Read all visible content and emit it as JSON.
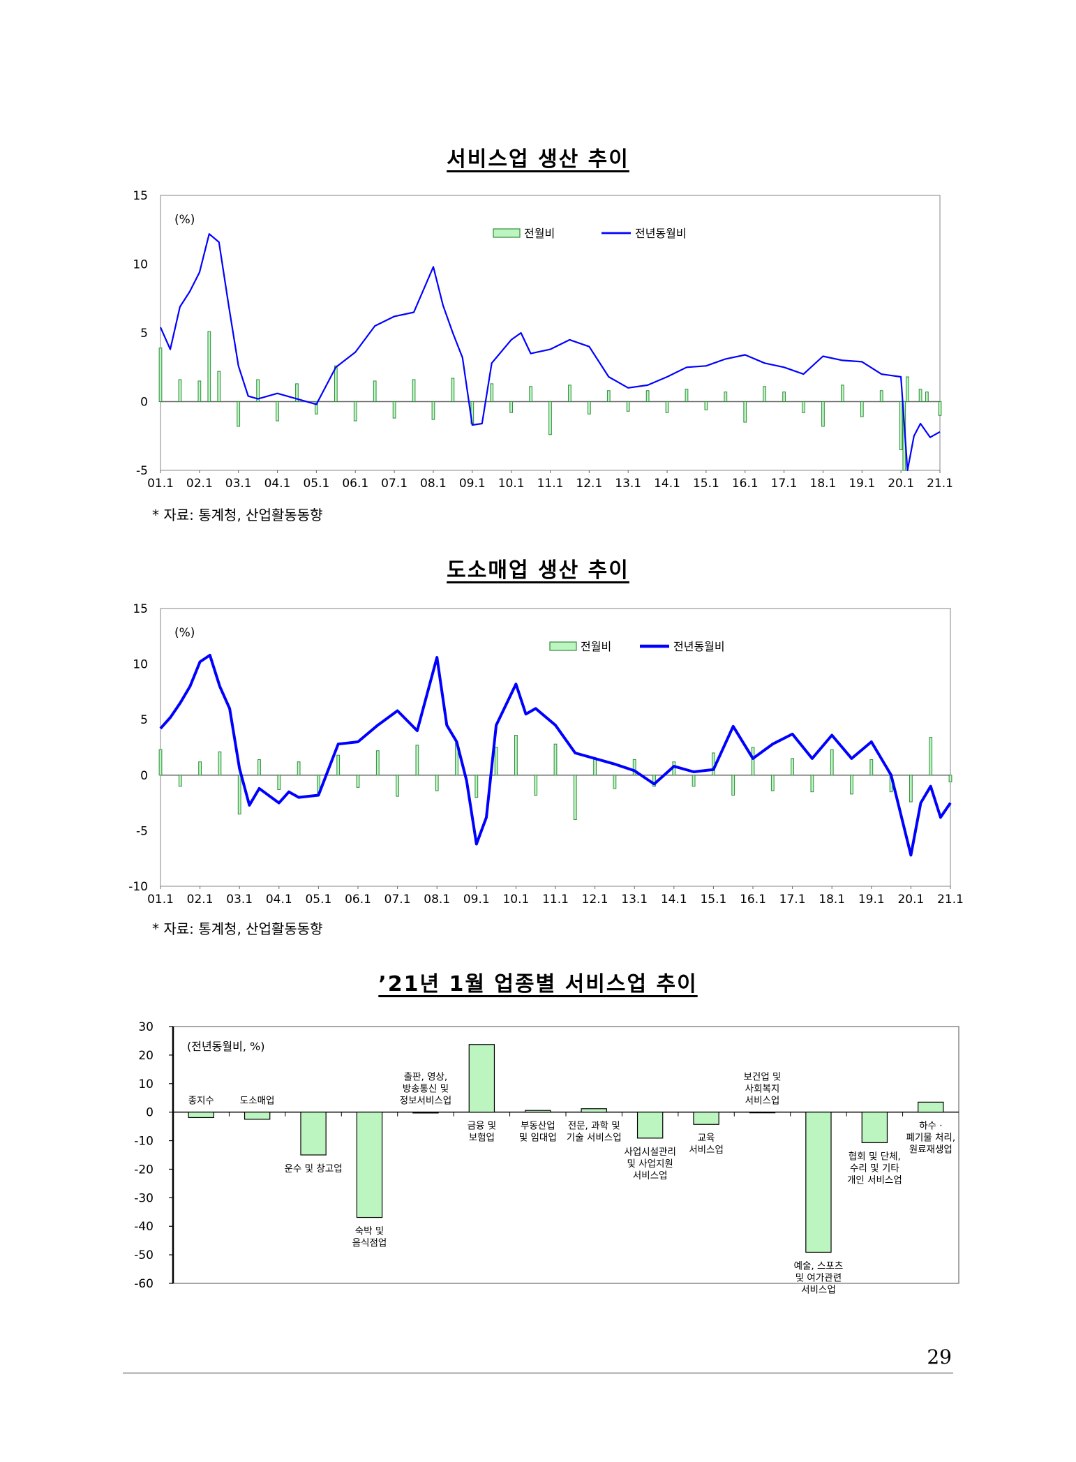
{
  "page": {
    "number": "29",
    "source_note_1": "* 자료: 통계청, 산업활동동향",
    "source_note_2": "* 자료: 통계청, 산업활동동향"
  },
  "colors": {
    "bar_fill": "#bdf5c0",
    "bar_stroke": "#2e8b3d",
    "line": "#0000ff",
    "axis": "#333333"
  },
  "chart_data": [
    {
      "type": "bar+line",
      "title": "서비스업 생산 추이",
      "unit_label": "(%)",
      "ylim": [
        -5,
        15
      ],
      "yticks": [
        -5,
        0,
        5,
        10,
        15
      ],
      "xticks": [
        "01.1",
        "02.1",
        "03.1",
        "04.1",
        "05.1",
        "06.1",
        "07.1",
        "08.1",
        "09.1",
        "10.1",
        "11.1",
        "12.1",
        "13.1",
        "14.1",
        "15.1",
        "16.1",
        "17.1",
        "18.1",
        "19.1",
        "20.1",
        "21.1"
      ],
      "legend_position": "top",
      "series": [
        {
          "name": "전월비",
          "kind": "bar",
          "x": [
            "01.1",
            "01.7",
            "02.1",
            "02.4",
            "02.7",
            "03.1",
            "03.7",
            "04.1",
            "04.7",
            "05.1",
            "05.7",
            "06.1",
            "06.7",
            "07.1",
            "07.7",
            "08.1",
            "08.7",
            "09.1",
            "09.7",
            "10.1",
            "10.7",
            "11.1",
            "11.7",
            "12.1",
            "12.7",
            "13.1",
            "13.7",
            "14.1",
            "14.7",
            "15.1",
            "15.7",
            "16.1",
            "16.7",
            "17.1",
            "17.7",
            "18.1",
            "18.7",
            "19.1",
            "19.7",
            "20.1",
            "20.2",
            "20.3",
            "20.7",
            "20.9",
            "21.1"
          ],
          "values": [
            3.9,
            1.6,
            1.5,
            5.1,
            2.2,
            -1.8,
            1.6,
            -1.4,
            1.3,
            -0.9,
            2.6,
            -1.4,
            1.5,
            -1.2,
            1.6,
            -1.3,
            1.7,
            -1.6,
            1.3,
            -0.8,
            1.1,
            -2.4,
            1.2,
            -0.9,
            0.8,
            -0.7,
            0.8,
            -0.8,
            0.9,
            -0.6,
            0.7,
            -1.5,
            1.1,
            0.7,
            -0.8,
            -1.8,
            1.2,
            -1.1,
            0.8,
            -3.5,
            -5.0,
            1.8,
            0.9,
            0.7,
            -1.0
          ]
        },
        {
          "name": "전년동월비",
          "kind": "line",
          "x": [
            "01.1",
            "01.4",
            "01.7",
            "01.10",
            "02.1",
            "02.4",
            "02.7",
            "02.10",
            "03.1",
            "03.4",
            "03.7",
            "04.1",
            "04.7",
            "05.1",
            "05.7",
            "06.1",
            "06.7",
            "07.1",
            "07.7",
            "08.1",
            "08.4",
            "08.7",
            "08.10",
            "09.1",
            "09.4",
            "09.7",
            "10.1",
            "10.4",
            "10.7",
            "11.1",
            "11.7",
            "12.1",
            "12.7",
            "13.1",
            "13.7",
            "14.1",
            "14.7",
            "15.1",
            "15.7",
            "16.1",
            "16.7",
            "17.1",
            "17.7",
            "18.1",
            "18.7",
            "19.1",
            "19.7",
            "20.1",
            "20.3",
            "20.5",
            "20.7",
            "20.10",
            "21.1"
          ],
          "values": [
            5.4,
            3.8,
            6.9,
            8.0,
            9.4,
            12.2,
            11.6,
            7.0,
            2.6,
            0.4,
            0.2,
            0.6,
            0.2,
            -0.2,
            2.5,
            3.6,
            5.5,
            6.2,
            6.5,
            9.8,
            7.0,
            5.0,
            3.2,
            -1.7,
            -1.6,
            2.8,
            4.5,
            5.0,
            3.5,
            3.8,
            4.5,
            4.0,
            1.8,
            1.0,
            1.2,
            1.8,
            2.5,
            2.6,
            3.1,
            3.4,
            2.8,
            2.5,
            2.0,
            3.3,
            3.0,
            2.9,
            2.0,
            1.8,
            -5.0,
            -2.5,
            -1.6,
            -2.6,
            -2.2
          ]
        }
      ]
    },
    {
      "type": "bar+line",
      "title": "도소매업 생산 추이",
      "unit_label": "(%)",
      "ylim": [
        -10,
        15
      ],
      "yticks": [
        -10,
        -5,
        0,
        5,
        10,
        15
      ],
      "xticks": [
        "01.1",
        "02.1",
        "03.1",
        "04.1",
        "05.1",
        "06.1",
        "07.1",
        "08.1",
        "09.1",
        "10.1",
        "11.1",
        "12.1",
        "13.1",
        "14.1",
        "15.1",
        "16.1",
        "17.1",
        "18.1",
        "19.1",
        "20.1",
        "21.1"
      ],
      "legend_position": "top",
      "series": [
        {
          "name": "전월비",
          "kind": "bar",
          "x": [
            "01.1",
            "01.7",
            "02.1",
            "02.7",
            "03.1",
            "03.7",
            "04.1",
            "04.7",
            "05.1",
            "05.7",
            "06.1",
            "06.7",
            "07.1",
            "07.7",
            "08.1",
            "08.7",
            "09.1",
            "09.7",
            "10.1",
            "10.7",
            "11.1",
            "11.7",
            "12.1",
            "12.7",
            "13.1",
            "13.7",
            "14.1",
            "14.7",
            "15.1",
            "15.7",
            "16.1",
            "16.7",
            "17.1",
            "17.7",
            "18.1",
            "18.7",
            "19.1",
            "19.7",
            "20.1",
            "20.7",
            "21.1"
          ],
          "values": [
            2.3,
            -1.0,
            1.2,
            2.1,
            -3.5,
            1.4,
            -1.3,
            1.2,
            -1.6,
            1.8,
            -1.1,
            2.2,
            -1.9,
            2.7,
            -1.4,
            2.9,
            -2.0,
            2.5,
            3.6,
            -1.8,
            2.8,
            -4.0,
            1.5,
            -1.2,
            1.4,
            -1.0,
            1.2,
            -1.0,
            2.0,
            -1.8,
            2.5,
            -1.4,
            1.5,
            -1.5,
            2.3,
            -1.7,
            1.4,
            -1.5,
            -2.4,
            3.4,
            -0.6
          ]
        },
        {
          "name": "전년동월비",
          "kind": "line",
          "x": [
            "01.1",
            "01.4",
            "01.7",
            "01.10",
            "02.1",
            "02.4",
            "02.7",
            "02.10",
            "03.1",
            "03.4",
            "03.7",
            "04.1",
            "04.4",
            "04.7",
            "05.1",
            "05.7",
            "06.1",
            "06.7",
            "07.1",
            "07.7",
            "08.1",
            "08.4",
            "08.7",
            "08.10",
            "09.1",
            "09.4",
            "09.7",
            "10.1",
            "10.4",
            "10.7",
            "11.1",
            "11.7",
            "12.1",
            "12.7",
            "13.1",
            "13.7",
            "14.1",
            "14.7",
            "15.1",
            "15.7",
            "16.1",
            "16.7",
            "17.1",
            "17.7",
            "18.1",
            "18.7",
            "19.1",
            "19.7",
            "20.1",
            "20.4",
            "20.7",
            "20.10",
            "21.1"
          ],
          "values": [
            4.2,
            5.2,
            6.5,
            8.0,
            10.2,
            10.8,
            8.0,
            6.0,
            0.6,
            -2.7,
            -1.2,
            -2.5,
            -1.5,
            -2.0,
            -1.8,
            2.8,
            3.0,
            4.5,
            5.8,
            4.0,
            10.6,
            4.5,
            3.0,
            -0.5,
            -6.2,
            -3.8,
            4.5,
            8.2,
            5.5,
            6.0,
            4.5,
            2.0,
            1.5,
            1.0,
            0.4,
            -0.8,
            0.8,
            0.3,
            0.5,
            4.4,
            1.5,
            2.8,
            3.7,
            1.5,
            3.6,
            1.5,
            3.0,
            0.0,
            -7.2,
            -2.5,
            -1.0,
            -3.8,
            -2.5
          ]
        }
      ]
    },
    {
      "type": "bar",
      "title": "’21년 1월 업종별 서비스업 추이",
      "unit_label": "(전년동월비, %)",
      "ylim": [
        -60,
        30
      ],
      "yticks": [
        -60,
        -50,
        -40,
        -30,
        -20,
        -10,
        0,
        10,
        20,
        30
      ],
      "categories": [
        [
          "종지수"
        ],
        [
          "도소매업"
        ],
        [
          "운수 및 창고업"
        ],
        [
          "숙박 및",
          "음식점업"
        ],
        [
          "출판, 영상,",
          "방송통신 및",
          "정보서비스업"
        ],
        [
          "금융 및",
          "보험업"
        ],
        [
          "부동산업",
          "및 임대업"
        ],
        [
          "전문, 과학 및",
          "기술 서비스업"
        ],
        [
          "사업시설관리",
          "및 사업지원",
          "서비스업"
        ],
        [
          "교육",
          "서비스업"
        ],
        [
          "보건업 및",
          "사회복지",
          "서비스업"
        ],
        [
          "예술, 스포츠",
          "및 여가관련",
          "서비스업"
        ],
        [
          "협회 및 단체,",
          "수리 및 기타",
          "개인 서비스업"
        ],
        [
          "하수 ·",
          "폐기물 처리,",
          "원료재생업"
        ]
      ],
      "values": [
        -1.9,
        -2.5,
        -15.0,
        -36.9,
        -0.3,
        23.7,
        0.6,
        1.2,
        -9.1,
        -4.3,
        -0.2,
        -49.1,
        -10.7,
        3.5
      ]
    }
  ]
}
